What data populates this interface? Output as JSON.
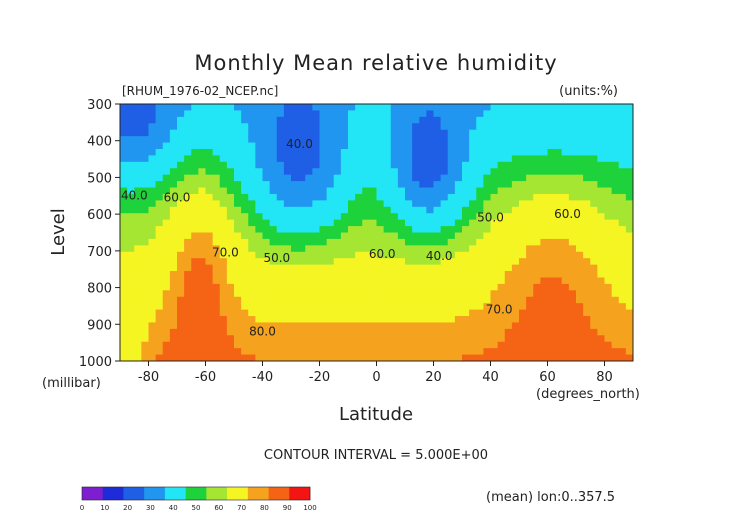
{
  "chart_data": {
    "type": "contour",
    "title": "Monthly Mean relative humidity",
    "file_label": "[RHUM_1976-02_NCEP.nc]",
    "units_label": "(units:%)",
    "xlabel": "Latitude",
    "x_unit_label": "(degrees_north)",
    "ylabel": "Level",
    "y_unit_label": "(millibar)",
    "xlim": [
      -90,
      90
    ],
    "ylim": [
      1000,
      300
    ],
    "x_ticks": [
      -80,
      -60,
      -40,
      -20,
      0,
      20,
      40,
      60,
      80
    ],
    "y_ticks": [
      1000,
      900,
      800,
      700,
      600,
      500,
      400,
      300
    ],
    "contour_interval_text": "CONTOUR INTERVAL = 5.000E+00",
    "footer_text": "(mean) lon:0..357.5",
    "contour_labels": [
      {
        "text": "40.0",
        "x": -27,
        "y": 420
      },
      {
        "text": "40.0",
        "x": -85,
        "y": 560
      },
      {
        "text": "60.0",
        "x": -70,
        "y": 565
      },
      {
        "text": "70.0",
        "x": -53,
        "y": 715
      },
      {
        "text": "50.0",
        "x": -35,
        "y": 730
      },
      {
        "text": "60.0",
        "x": 2,
        "y": 720
      },
      {
        "text": "40.0",
        "x": 22,
        "y": 725
      },
      {
        "text": "50.0",
        "x": 40,
        "y": 620
      },
      {
        "text": "60.0",
        "x": 67,
        "y": 610
      },
      {
        "text": "70.0",
        "x": 43,
        "y": 870
      },
      {
        "text": "80.0",
        "x": -40,
        "y": 930
      }
    ],
    "colorbar": {
      "boundaries": [
        "0",
        "10",
        "20",
        "30",
        "40",
        "50",
        "60",
        "70",
        "80",
        "90",
        "100"
      ],
      "colors": [
        "#7d1fd0",
        "#1e2bd9",
        "#1f5fe6",
        "#2196f0",
        "#22e6f5",
        "#1ed23c",
        "#a4e632",
        "#f5f523",
        "#f5a21e",
        "#f56414",
        "#f51414"
      ]
    },
    "levels": [
      {
        "value": 30,
        "color": "#1f5fe6"
      },
      {
        "value": 40,
        "color": "#2196f0"
      },
      {
        "value": 50,
        "color": "#22e6f5"
      },
      {
        "value": 60,
        "color": "#1ed23c"
      },
      {
        "value": 65,
        "color": "#a4e632"
      },
      {
        "value": 70,
        "color": "#f5f523"
      },
      {
        "value": 80,
        "color": "#f5a21e"
      },
      {
        "value": 85,
        "color": "#f56414"
      },
      {
        "value": 90,
        "color": "#f51414"
      }
    ]
  }
}
